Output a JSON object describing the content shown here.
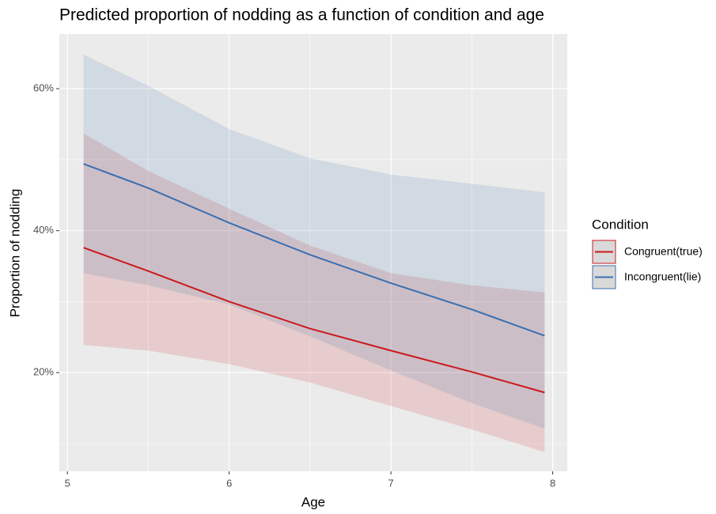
{
  "chart_data": {
    "type": "line",
    "title": "Predicted proportion of nodding as a function of condition and age",
    "x_label": "Age",
    "y_label": "Proportion of nodding",
    "x": [
      5.1,
      5.5,
      6,
      6.5,
      7,
      7.5,
      7.95
    ],
    "series": [
      {
        "name": "Congruent(true)",
        "color": "#cb181d",
        "values": [
          37.6,
          34.3,
          30.0,
          26.2,
          23.1,
          20.1,
          17.2
        ],
        "lower": [
          23.9,
          23.1,
          21.2,
          18.6,
          15.3,
          12.0,
          8.8
        ],
        "upper": [
          53.7,
          48.4,
          43.1,
          37.9,
          34.0,
          32.3,
          31.3
        ]
      },
      {
        "name": "Incongruent(lie)",
        "color": "#3a6fb0",
        "values": [
          49.4,
          46.0,
          41.1,
          36.6,
          32.6,
          28.9,
          25.2
        ],
        "lower": [
          34.0,
          32.3,
          29.6,
          25.1,
          20.3,
          15.7,
          12.1
        ],
        "upper": [
          64.8,
          60.4,
          54.3,
          50.2,
          47.9,
          46.6,
          45.4
        ]
      }
    ],
    "legend_title": "Condition",
    "xlim": [
      4.95,
      8.09
    ],
    "ylim": [
      6.1,
      67.7
    ],
    "xticks": [
      5,
      6,
      7,
      8
    ],
    "yticks": [
      {
        "value": 20,
        "label": "20%"
      },
      {
        "value": 40,
        "label": "40%"
      },
      {
        "value": 60,
        "label": "60%"
      }
    ],
    "minor_xticks": [
      5.5,
      6.5,
      7.5
    ],
    "minor_yticks": [
      10,
      30,
      50
    ],
    "grid": true,
    "legend": "right"
  }
}
